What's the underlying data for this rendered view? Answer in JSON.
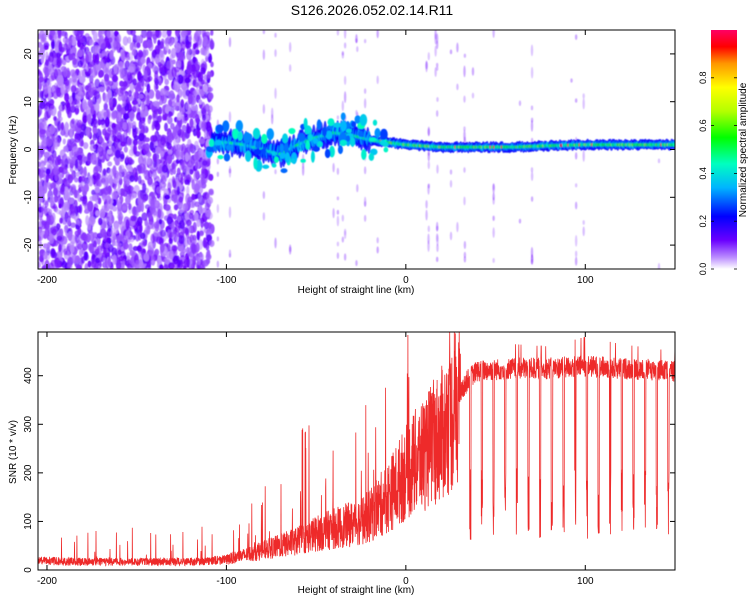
{
  "title": "S126.2026.052.02.14.R11",
  "chart_data": [
    {
      "type": "heatmap",
      "name": "spectrogram",
      "xlabel": "Height of straight line (km)",
      "ylabel": "Frequency (Hz)",
      "xlim": [
        -205,
        150
      ],
      "ylim": [
        -25,
        25
      ],
      "xticks": [
        -200,
        -100,
        0,
        100
      ],
      "xtick_labels": [
        "-200",
        "-100",
        "0",
        "100"
      ],
      "yticks": [
        -20,
        -10,
        0,
        10,
        20
      ],
      "ytick_labels": [
        "-20",
        "-10",
        "0",
        "10",
        "20"
      ],
      "colorbar": {
        "label": "Normalized spectral amplitude",
        "range": [
          0,
          1
        ],
        "ticks": [
          0.0,
          0.2,
          0.4,
          0.6,
          0.8
        ],
        "tick_labels": [
          "0.0",
          "0.2",
          "0.4",
          "0.6",
          "0.8"
        ]
      },
      "carrier_track": {
        "height_km": [
          -110,
          -100,
          -90,
          -80,
          -70,
          -60,
          -50,
          -40,
          -30,
          -20,
          -10,
          0,
          20,
          40,
          60,
          80,
          100,
          120,
          150
        ],
        "frequency_hz": [
          1,
          1.5,
          1,
          0,
          -1,
          1,
          2.5,
          3.5,
          3,
          2,
          1.5,
          1,
          0.5,
          0.5,
          0.5,
          0.8,
          1,
          1,
          1
        ]
      },
      "noise_regime_below_km": -108
    },
    {
      "type": "line",
      "name": "snr",
      "xlabel": "Height of straight line (km)",
      "ylabel": "SNR (10 * v/v)",
      "xlim": [
        -205,
        150
      ],
      "ylim": [
        0,
        490
      ],
      "xticks": [
        -200,
        -100,
        0,
        100
      ],
      "xtick_labels": [
        "-200",
        "-100",
        "0",
        "100"
      ],
      "yticks": [
        0,
        100,
        200,
        300,
        400
      ],
      "ytick_labels": [
        "0",
        "100",
        "200",
        "300",
        "400"
      ],
      "color": "#ee2a2a",
      "series": [
        {
          "name": "SNR envelope",
          "x": [
            -205,
            -180,
            -150,
            -120,
            -100,
            -90,
            -80,
            -70,
            -60,
            -50,
            -40,
            -30,
            -20,
            -10,
            0,
            10,
            20,
            25,
            30,
            35,
            40,
            60,
            80,
            100,
            120,
            150
          ],
          "base": [
            20,
            18,
            18,
            18,
            22,
            30,
            40,
            50,
            60,
            75,
            85,
            95,
            110,
            150,
            200,
            240,
            280,
            310,
            360,
            395,
            410,
            415,
            415,
            420,
            415,
            410
          ],
          "peaks": [
            90,
            80,
            80,
            80,
            90,
            110,
            150,
            200,
            320,
            270,
            260,
            310,
            330,
            390,
            400,
            420,
            435,
            440,
            445,
            450,
            465,
            465,
            460,
            480,
            465,
            450
          ]
        }
      ]
    }
  ]
}
